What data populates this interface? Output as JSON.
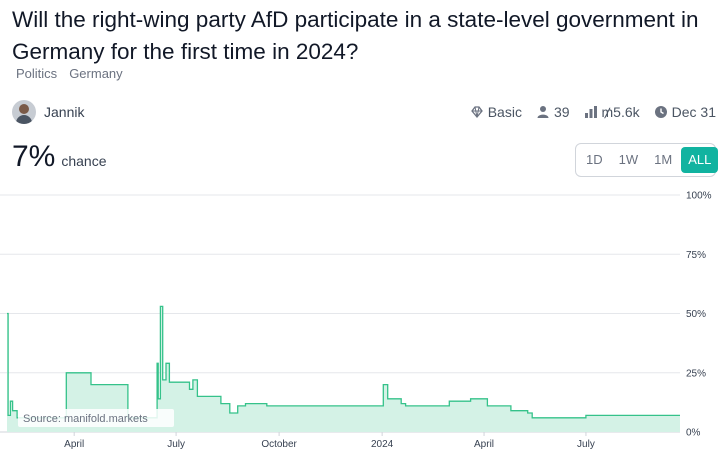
{
  "question": {
    "title": "Will the right-wing party AfD participate in a state-level government in Germany for the first time in 2024?",
    "tags": [
      "Politics",
      "Germany"
    ]
  },
  "author": {
    "name": "Jannik"
  },
  "stats": {
    "tier": "Basic",
    "traders": "39",
    "volume": "₥5.6k",
    "close_date": "Dec 31"
  },
  "probability": {
    "value": "7%",
    "label": "chance"
  },
  "time_range": {
    "options": [
      "1D",
      "1W",
      "1M",
      "ALL"
    ],
    "selected": "ALL"
  },
  "colors": {
    "accent": "#11b3a0",
    "line": "#35c28a",
    "fill": "#d4f2e6"
  },
  "watermark": "Source: manifold.markets",
  "chart_data": {
    "type": "area",
    "title": "",
    "xlabel": "",
    "ylabel": "",
    "ylim": [
      0,
      100
    ],
    "y_ticks": [
      "0%",
      "25%",
      "50%",
      "75%",
      "100%"
    ],
    "x_ticks": [
      "April",
      "July",
      "October",
      "2024",
      "April",
      "July"
    ],
    "x_start": "2023-01-31",
    "x_end": "2024-09-23",
    "grid": true,
    "series": [
      {
        "points": [
          [
            "2023-01-31",
            50
          ],
          [
            "2023-02-01",
            7
          ],
          [
            "2023-02-03",
            13
          ],
          [
            "2023-02-05",
            9
          ],
          [
            "2023-02-09",
            6
          ],
          [
            "2023-03-24",
            6
          ],
          [
            "2023-03-25",
            25
          ],
          [
            "2023-04-15",
            25
          ],
          [
            "2023-04-16",
            20
          ],
          [
            "2023-05-18",
            20
          ],
          [
            "2023-05-19",
            6
          ],
          [
            "2023-06-13",
            6
          ],
          [
            "2023-06-14",
            29
          ],
          [
            "2023-06-15",
            14
          ],
          [
            "2023-06-17",
            53
          ],
          [
            "2023-06-19",
            22
          ],
          [
            "2023-06-22",
            29
          ],
          [
            "2023-06-25",
            21
          ],
          [
            "2023-07-12",
            21
          ],
          [
            "2023-07-13",
            18
          ],
          [
            "2023-07-16",
            22
          ],
          [
            "2023-07-20",
            15
          ],
          [
            "2023-08-04",
            15
          ],
          [
            "2023-08-10",
            12
          ],
          [
            "2023-08-18",
            8
          ],
          [
            "2023-08-25",
            11
          ],
          [
            "2023-09-01",
            12
          ],
          [
            "2023-09-15",
            12
          ],
          [
            "2023-09-20",
            11
          ],
          [
            "2023-12-31",
            11
          ],
          [
            "2024-01-02",
            20
          ],
          [
            "2024-01-06",
            14
          ],
          [
            "2024-01-18",
            12
          ],
          [
            "2024-01-22",
            11
          ],
          [
            "2024-02-20",
            11
          ],
          [
            "2024-02-28",
            11
          ],
          [
            "2024-03-01",
            13
          ],
          [
            "2024-03-19",
            13
          ],
          [
            "2024-03-20",
            14
          ],
          [
            "2024-03-30",
            14
          ],
          [
            "2024-04-04",
            11
          ],
          [
            "2024-04-20",
            11
          ],
          [
            "2024-04-25",
            9
          ],
          [
            "2024-05-10",
            8
          ],
          [
            "2024-05-14",
            6
          ],
          [
            "2024-06-20",
            6
          ],
          [
            "2024-07-01",
            7
          ],
          [
            "2024-09-15",
            7
          ],
          [
            "2024-09-23",
            7
          ]
        ]
      }
    ]
  }
}
